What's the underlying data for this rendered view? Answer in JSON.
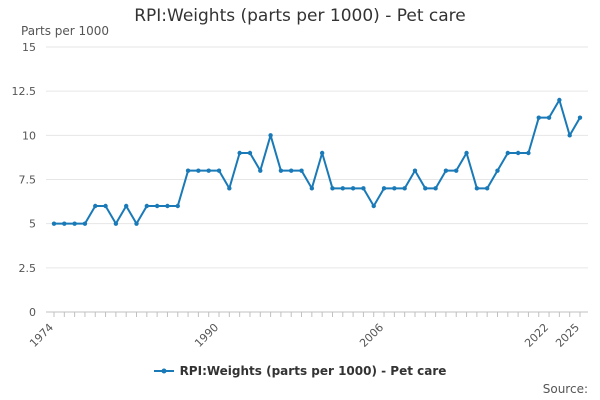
{
  "chart_data": {
    "type": "line",
    "title": "RPI:Weights (parts per 1000) - Pet care",
    "ylabel": "Parts per 1000",
    "xlabel": "",
    "ylim": [
      0,
      15
    ],
    "yticks": [
      0,
      2.5,
      5,
      7.5,
      10,
      12.5,
      15
    ],
    "ytick_labels": [
      "0",
      "2.5",
      "5",
      "7.5",
      "10",
      "12.5",
      "15"
    ],
    "xticks": [
      "1974",
      "1990",
      "2006",
      "2022",
      "2025"
    ],
    "x": [
      1974,
      1975,
      1976,
      1977,
      1978,
      1979,
      1980,
      1981,
      1982,
      1983,
      1984,
      1985,
      1986,
      1987,
      1988,
      1989,
      1990,
      1991,
      1992,
      1993,
      1994,
      1995,
      1996,
      1997,
      1998,
      1999,
      2000,
      2001,
      2002,
      2003,
      2004,
      2005,
      2006,
      2007,
      2008,
      2009,
      2010,
      2011,
      2012,
      2013,
      2014,
      2015,
      2016,
      2017,
      2018,
      2019,
      2020,
      2021,
      2022,
      2023,
      2024,
      2025
    ],
    "series": [
      {
        "name": "RPI:Weights (parts per 1000) - Pet care",
        "color": "#1a7ab8",
        "values": [
          5,
          5,
          5,
          5,
          6,
          6,
          5,
          6,
          5,
          6,
          6,
          6,
          6,
          8,
          8,
          8,
          8,
          7,
          9,
          9,
          8,
          10,
          8,
          8,
          8,
          7,
          9,
          7,
          7,
          7,
          7,
          6,
          7,
          7,
          7,
          8,
          7,
          7,
          8,
          8,
          9,
          7,
          7,
          8,
          9,
          9,
          9,
          11,
          11,
          12,
          10,
          11
        ]
      }
    ],
    "legend": "bottom",
    "source_label": "Source:"
  }
}
